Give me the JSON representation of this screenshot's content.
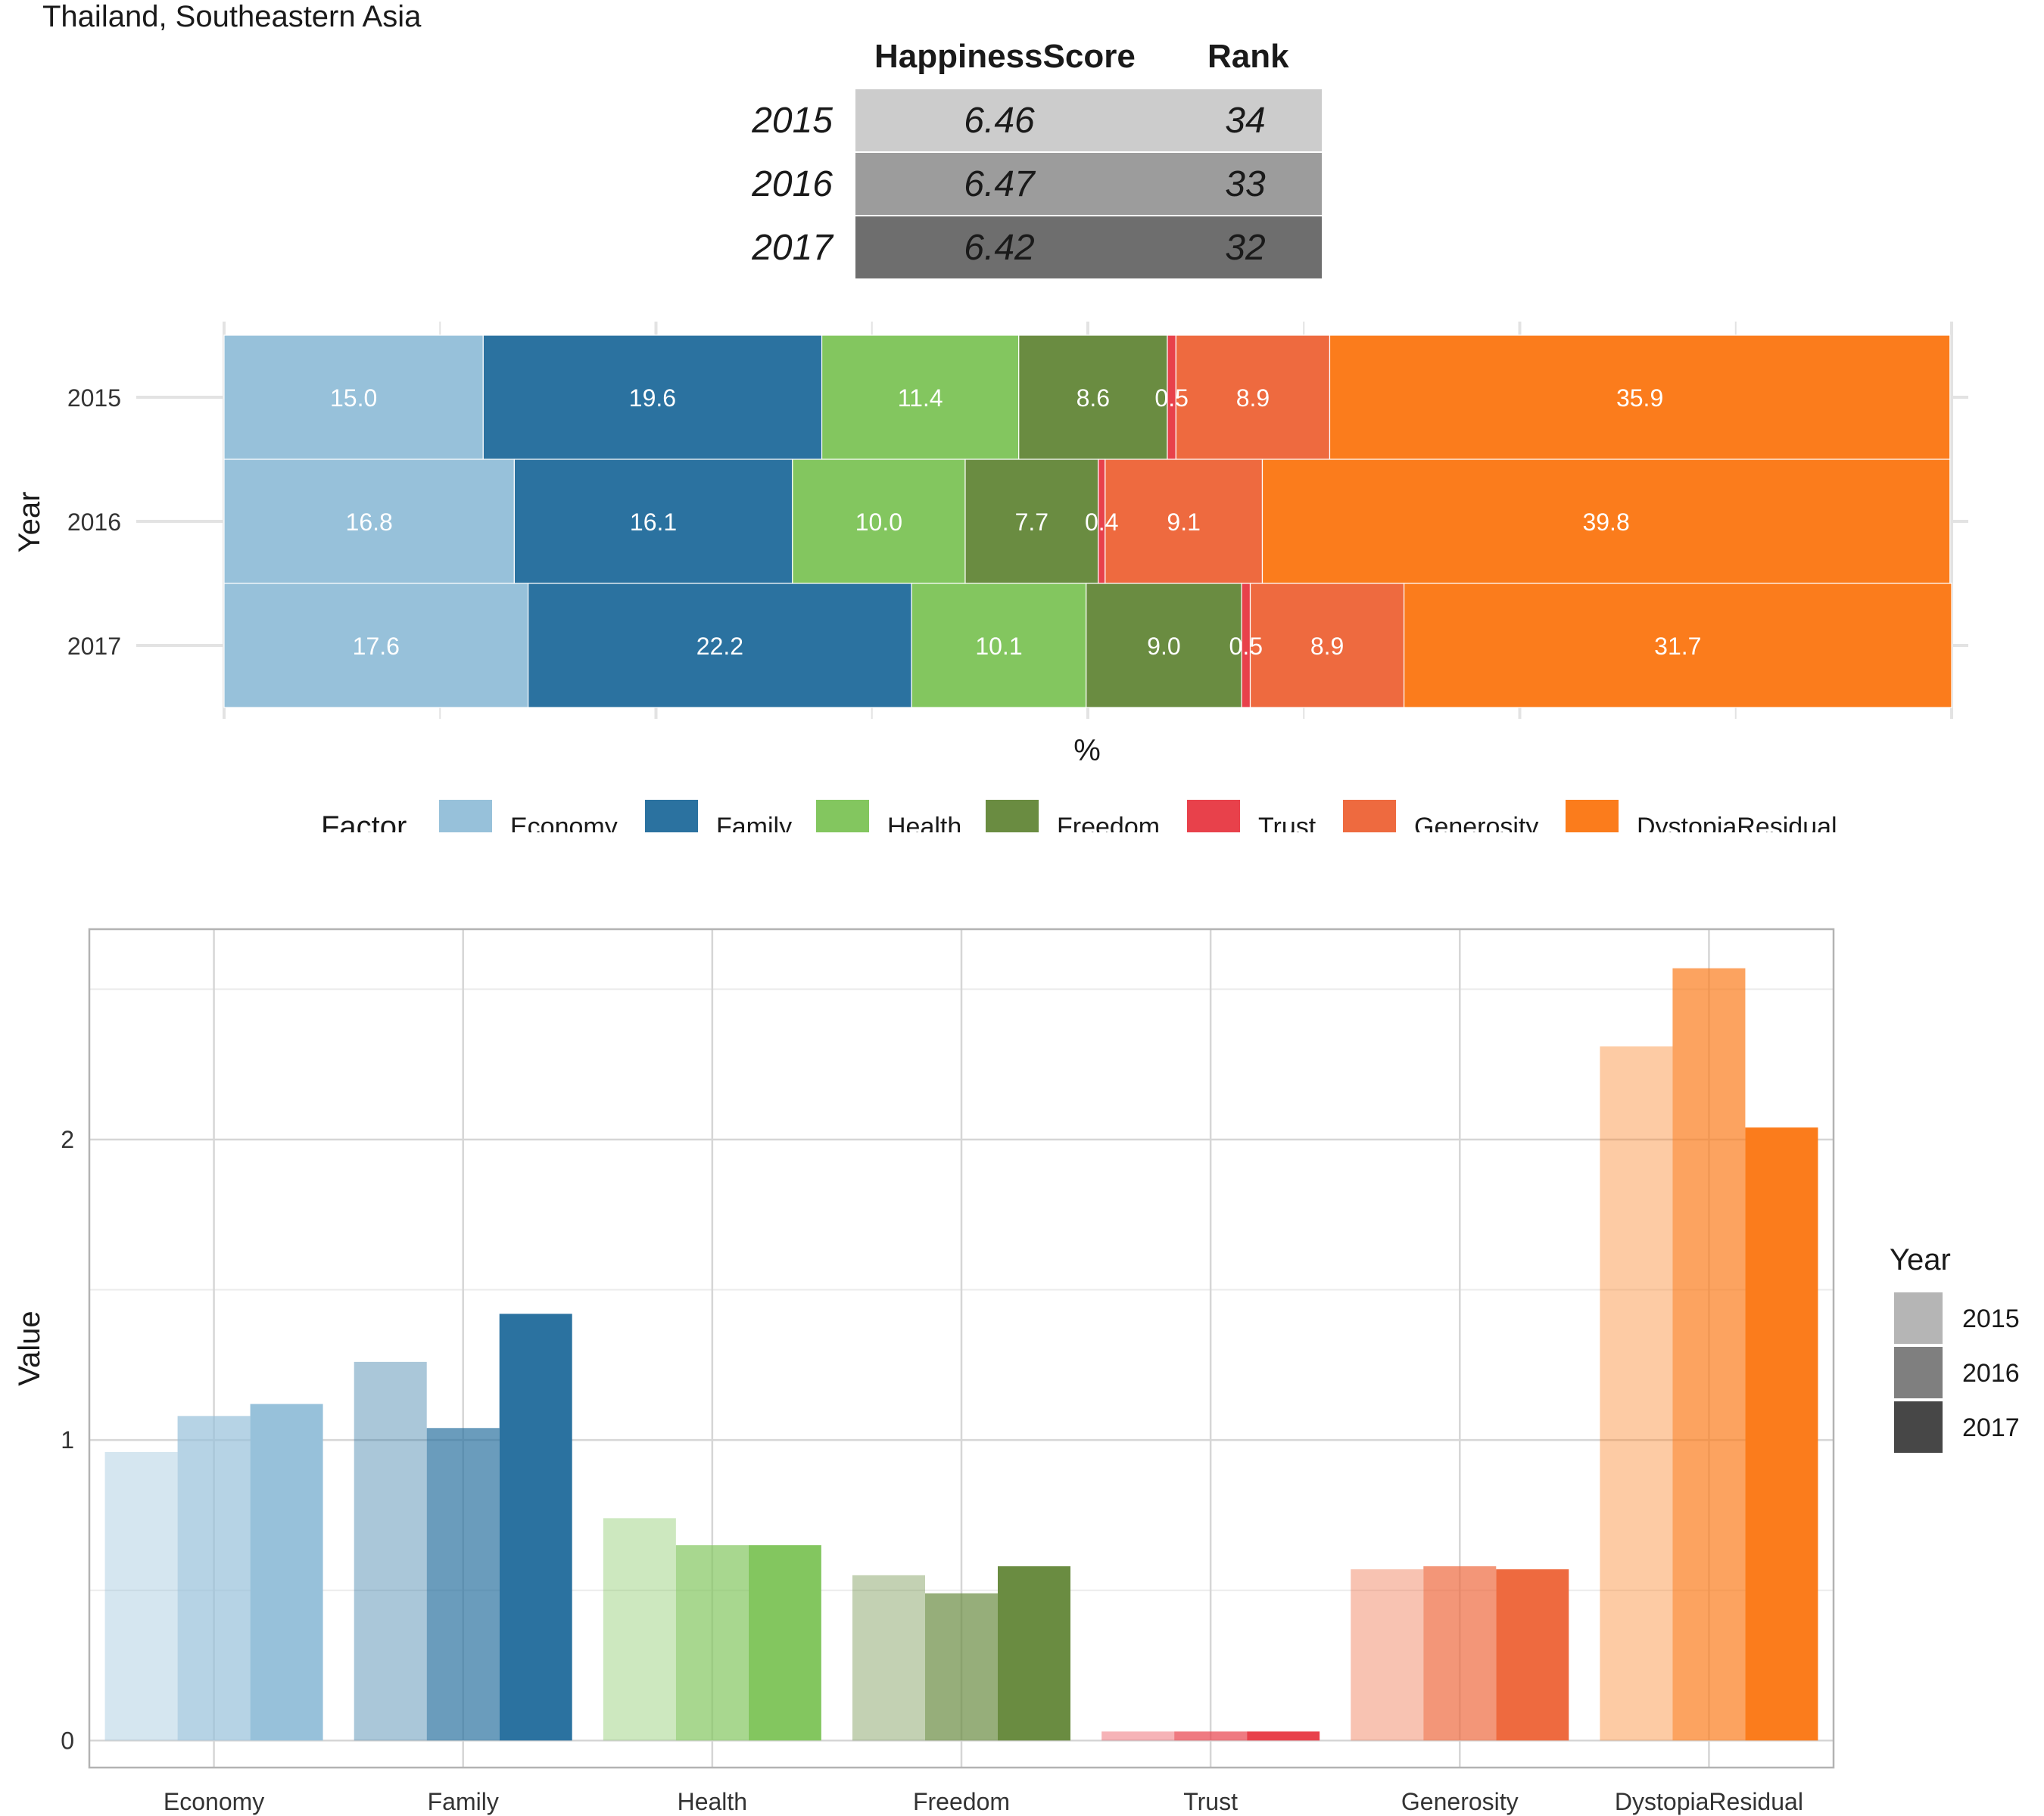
{
  "header": {
    "title": "Thailand, Southeastern Asia"
  },
  "score_table": {
    "columns": [
      "HappinessScore",
      "Rank"
    ],
    "rows": [
      {
        "year": "2015",
        "score": "6.46",
        "rank": "34",
        "color": "#cccccc"
      },
      {
        "year": "2016",
        "score": "6.47",
        "rank": "33",
        "color": "#9c9c9c"
      },
      {
        "year": "2017",
        "score": "6.42",
        "rank": "32",
        "color": "#6e6e6e"
      }
    ]
  },
  "factor_legend": {
    "title": "Factor"
  },
  "year_legend": {
    "title": "Year"
  },
  "chart_data": [
    {
      "type": "bar",
      "orientation": "horizontal-stacked-percent",
      "xlabel": "%",
      "ylabel": "Year",
      "categories": [
        "2015",
        "2016",
        "2017"
      ],
      "xlim": [
        0,
        100
      ],
      "series": [
        {
          "name": "Economy",
          "color": "#97c1da",
          "values": [
            15.0,
            16.8,
            17.6
          ],
          "labels": [
            "15.0",
            "16.8",
            "17.6"
          ]
        },
        {
          "name": "Family",
          "color": "#2b72a0",
          "values": [
            19.6,
            16.1,
            22.2
          ],
          "labels": [
            "19.6",
            "16.1",
            "22.2"
          ]
        },
        {
          "name": "Health",
          "color": "#83c65f",
          "values": [
            11.4,
            10.0,
            10.1
          ],
          "labels": [
            "11.4",
            "10.0",
            "10.1"
          ]
        },
        {
          "name": "Freedom",
          "color": "#6a8c41",
          "values": [
            8.6,
            7.7,
            9.0
          ],
          "labels": [
            "8.6",
            "7.7",
            "9.0"
          ]
        },
        {
          "name": "Trust",
          "color": "#e8414b",
          "values": [
            0.5,
            0.4,
            0.5
          ],
          "labels": [
            "0.5",
            "0.4",
            "0.5"
          ]
        },
        {
          "name": "Generosity",
          "color": "#ee6a3f",
          "values": [
            8.9,
            9.1,
            8.9
          ],
          "labels": [
            "8.9",
            "9.1",
            "8.9"
          ]
        },
        {
          "name": "DystopiaResidual",
          "color": "#fb7c1c",
          "values": [
            35.9,
            39.8,
            31.7
          ],
          "labels": [
            "35.9",
            "39.8",
            "31.7"
          ]
        }
      ],
      "grid": true
    },
    {
      "type": "bar",
      "orientation": "vertical-grouped",
      "xlabel": "",
      "ylabel": "Value",
      "categories": [
        "Economy",
        "Family",
        "Health",
        "Freedom",
        "Trust",
        "Generosity",
        "DystopiaResidual"
      ],
      "ylim": [
        -0.09,
        2.7
      ],
      "yticks": [
        "0",
        "1",
        "2"
      ],
      "series": [
        {
          "name": "2015",
          "opacity": 0.4,
          "legend_color": "#b5b5b5",
          "values": [
            0.96,
            1.26,
            0.74,
            0.55,
            0.03,
            0.57,
            2.31
          ]
        },
        {
          "name": "2016",
          "opacity": 0.7,
          "legend_color": "#7f7f7f",
          "values": [
            1.08,
            1.04,
            0.65,
            0.49,
            0.03,
            0.58,
            2.57
          ]
        },
        {
          "name": "2017",
          "opacity": 1.0,
          "legend_color": "#474747",
          "values": [
            1.12,
            1.42,
            0.65,
            0.58,
            0.03,
            0.57,
            2.04
          ]
        }
      ],
      "category_colors": [
        "#97c1da",
        "#2b72a0",
        "#83c65f",
        "#6a8c41",
        "#e8414b",
        "#ee6a3f",
        "#fb7c1c"
      ],
      "grid": true
    }
  ]
}
